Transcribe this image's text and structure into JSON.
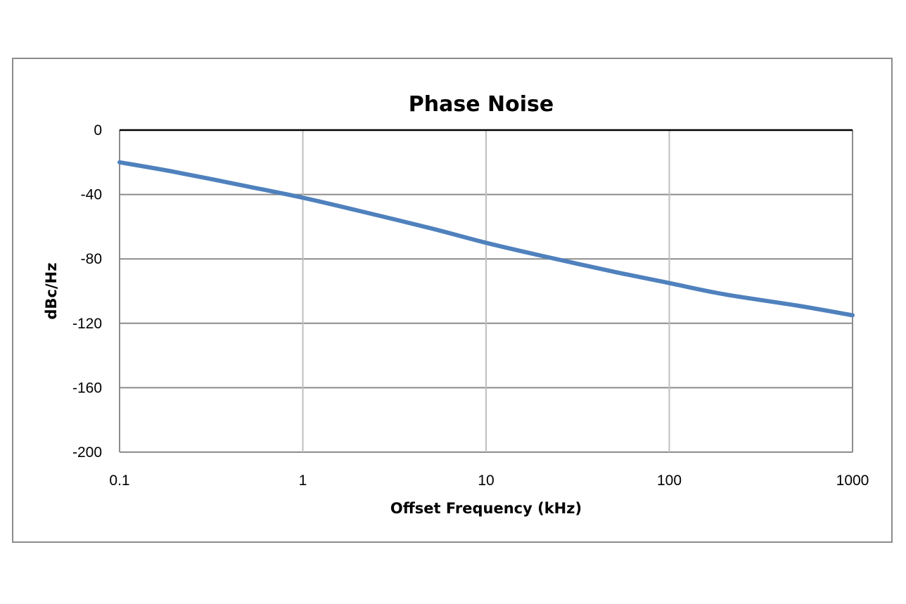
{
  "chart_data": {
    "type": "line",
    "title": "Phase Noise",
    "xlabel": "Offset Frequency (kHz)",
    "ylabel": "dBc/Hz",
    "x_scale": "log",
    "xlim": [
      0.1,
      1000
    ],
    "ylim": [
      -200,
      0
    ],
    "x_ticks": [
      "0.1",
      "1",
      "10",
      "100",
      "1000"
    ],
    "y_ticks": [
      "0",
      "-40",
      "-80",
      "-120",
      "-160",
      "-200"
    ],
    "grid": true,
    "legend": "none",
    "series": [
      {
        "color": "#4f81bd",
        "x": [
          0.1,
          0.2,
          0.5,
          1,
          2,
          5,
          10,
          20,
          50,
          100,
          200,
          500,
          1000
        ],
        "y": [
          -20,
          -26,
          -35,
          -42,
          -50,
          -61,
          -70,
          -78,
          -88,
          -95,
          -102,
          -109,
          -115
        ]
      }
    ]
  }
}
